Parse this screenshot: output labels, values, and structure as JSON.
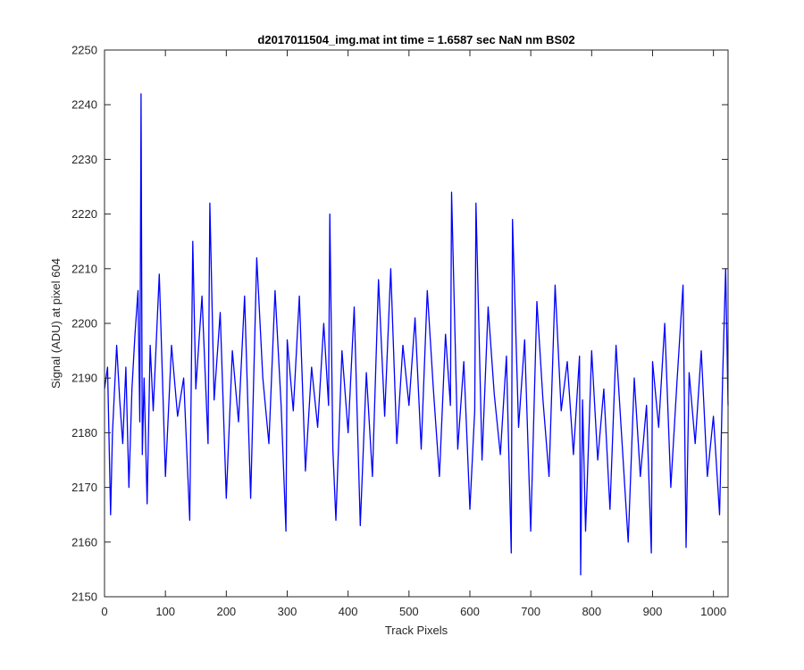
{
  "chart_data": {
    "type": "line",
    "title": "d2017011504_img.mat int time = 1.6587 sec  NaN nm BS02",
    "xlabel": "Track Pixels",
    "ylabel": "Signal (ADU) at pixel 604",
    "xlim": [
      0,
      1024
    ],
    "ylim": [
      2150,
      2250
    ],
    "xticks": [
      0,
      100,
      200,
      300,
      400,
      500,
      600,
      700,
      800,
      900,
      1000
    ],
    "yticks": [
      2150,
      2160,
      2170,
      2180,
      2190,
      2200,
      2210,
      2220,
      2230,
      2240,
      2250
    ],
    "grid": false,
    "line_color": "#0000ff",
    "series": [
      {
        "x": [
          0,
          5,
          10,
          13,
          20,
          25,
          30,
          35,
          40,
          45,
          50,
          55,
          58,
          60,
          62,
          65,
          70,
          75,
          80,
          90,
          100,
          110,
          120,
          130,
          140,
          145,
          150,
          160,
          170,
          173,
          180,
          190,
          200,
          210,
          220,
          230,
          240,
          250,
          260,
          270,
          280,
          290,
          298,
          300,
          310,
          320,
          330,
          340,
          350,
          360,
          368,
          370,
          375,
          380,
          390,
          400,
          410,
          420,
          430,
          440,
          450,
          460,
          470,
          480,
          490,
          500,
          510,
          520,
          530,
          540,
          550,
          560,
          568,
          570,
          580,
          590,
          600,
          608,
          610,
          620,
          630,
          640,
          650,
          660,
          668,
          670,
          680,
          690,
          700,
          710,
          720,
          730,
          740,
          750,
          760,
          770,
          780,
          782,
          785,
          790,
          800,
          810,
          820,
          830,
          840,
          850,
          860,
          870,
          880,
          890,
          898,
          900,
          910,
          920,
          930,
          940,
          950,
          955,
          960,
          970,
          980,
          990,
          1000,
          1010,
          1015,
          1020,
          1024
        ],
        "y": [
          2188,
          2192,
          2165,
          2180,
          2196,
          2186,
          2178,
          2192,
          2170,
          2188,
          2198,
          2206,
          2182,
          2242,
          2176,
          2190,
          2167,
          2196,
          2184,
          2209,
          2172,
          2196,
          2183,
          2190,
          2164,
          2215,
          2188,
          2205,
          2178,
          2222,
          2186,
          2202,
          2168,
          2195,
          2182,
          2205,
          2168,
          2212,
          2190,
          2178,
          2206,
          2185,
          2162,
          2197,
          2184,
          2205,
          2173,
          2192,
          2181,
          2200,
          2185,
          2220,
          2177,
          2164,
          2195,
          2180,
          2203,
          2163,
          2191,
          2172,
          2208,
          2183,
          2210,
          2178,
          2196,
          2185,
          2201,
          2177,
          2206,
          2188,
          2172,
          2198,
          2185,
          2224,
          2177,
          2193,
          2166,
          2184,
          2222,
          2175,
          2203,
          2187,
          2176,
          2194,
          2158,
          2219,
          2181,
          2197,
          2162,
          2204,
          2186,
          2172,
          2207,
          2184,
          2193,
          2176,
          2194,
          2154,
          2186,
          2162,
          2195,
          2175,
          2188,
          2166,
          2196,
          2178,
          2160,
          2190,
          2172,
          2185,
          2158,
          2193,
          2181,
          2200,
          2170,
          2189,
          2207,
          2159,
          2191,
          2178,
          2195,
          2172,
          2183,
          2165,
          2190,
          2210,
          2185
        ]
      }
    ]
  }
}
